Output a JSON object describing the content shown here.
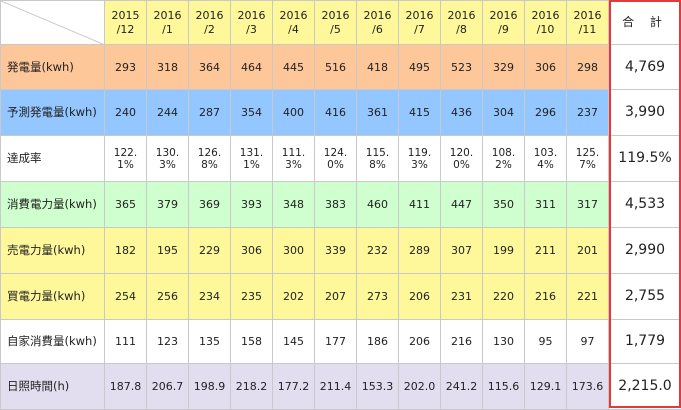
{
  "table": {
    "header": {
      "months": [
        "2015\n/12",
        "2016\n/1",
        "2016\n/2",
        "2016\n/3",
        "2016\n/4",
        "2016\n/5",
        "2016\n/6",
        "2016\n/7",
        "2016\n/8",
        "2016\n/9",
        "2016\n/10",
        "2016\n/11"
      ],
      "total_label": "合 計"
    },
    "rows": [
      {
        "label": "発電量(kwh)",
        "color": "#fdc79a",
        "values": [
          "293",
          "318",
          "364",
          "464",
          "445",
          "516",
          "418",
          "495",
          "523",
          "329",
          "306",
          "298"
        ],
        "total": "4,769"
      },
      {
        "label": "予測発電量(kwh)",
        "color": "#94c6ff",
        "values": [
          "240",
          "244",
          "287",
          "354",
          "400",
          "416",
          "361",
          "415",
          "436",
          "304",
          "296",
          "237"
        ],
        "total": "3,990"
      },
      {
        "label": "達成率",
        "color": "#ffffff",
        "values": [
          "122.\n1%",
          "130.\n3%",
          "126.\n8%",
          "131.\n1%",
          "111.\n3%",
          "124.\n0%",
          "115.\n8%",
          "119.\n3%",
          "120.\n0%",
          "108.\n2%",
          "103.\n4%",
          "125.\n7%"
        ],
        "total": "119.5%"
      },
      {
        "label": "消費電力量(kwh)",
        "color": "#cfffcf",
        "values": [
          "365",
          "379",
          "369",
          "393",
          "348",
          "383",
          "460",
          "411",
          "447",
          "350",
          "311",
          "317"
        ],
        "total": "4,533"
      },
      {
        "label": "売電力量(kwh)",
        "color": "#fff89a",
        "values": [
          "182",
          "195",
          "229",
          "306",
          "300",
          "339",
          "232",
          "289",
          "307",
          "199",
          "211",
          "201"
        ],
        "total": "2,990"
      },
      {
        "label": "買電力量(kwh)",
        "color": "#fff89a",
        "values": [
          "254",
          "256",
          "234",
          "235",
          "202",
          "207",
          "273",
          "206",
          "231",
          "220",
          "216",
          "221"
        ],
        "total": "2,755"
      },
      {
        "label": "自家消費量(kwh)",
        "color": "#ffffff",
        "values": [
          "111",
          "123",
          "135",
          "158",
          "145",
          "177",
          "186",
          "206",
          "216",
          "130",
          "95",
          "97"
        ],
        "total": "1,779"
      },
      {
        "label": "日照時間(h)",
        "color": "#e3ddf0",
        "values": [
          "187.8",
          "206.7",
          "198.9",
          "218.2",
          "177.2",
          "211.4",
          "153.3",
          "202.0",
          "241.2",
          "115.6",
          "129.1",
          "173.6"
        ],
        "total": "2,215.0"
      }
    ],
    "total_frame_color": "#e23a3a"
  }
}
